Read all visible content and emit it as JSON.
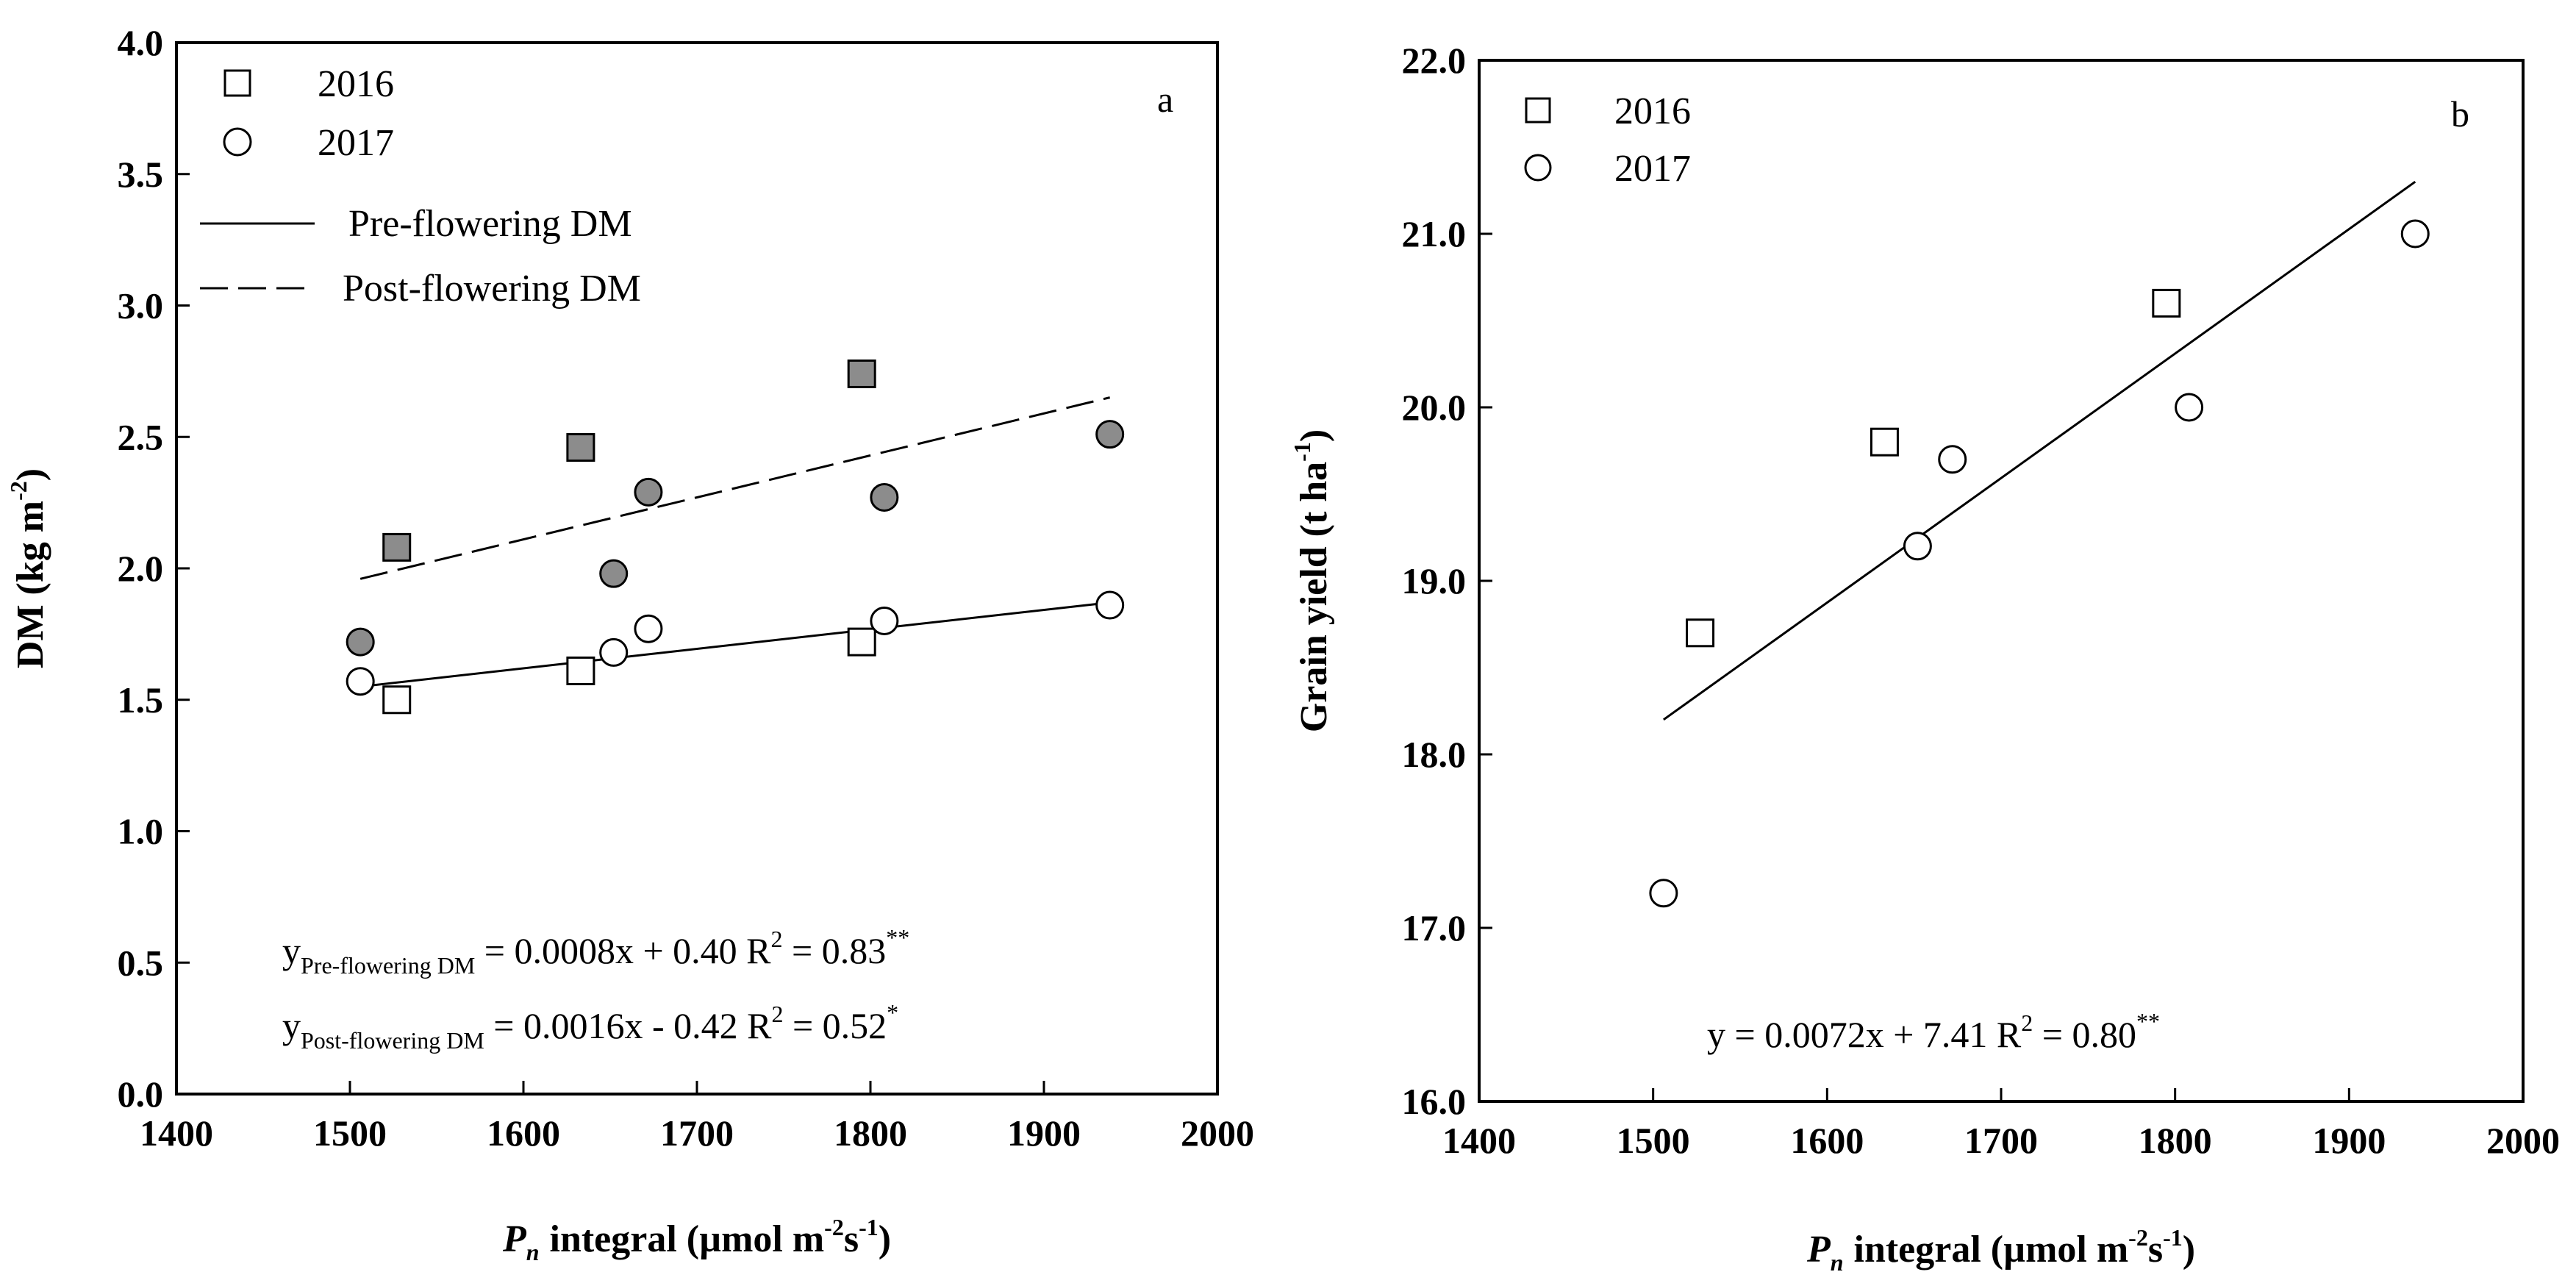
{
  "chart_data": [
    {
      "type": "scatter",
      "panel_letter": "a",
      "xlabel_main": "integral (µmol m",
      "xlabel_italic": "P",
      "xlabel_italic_sub": "n",
      "xlabel_sup1": "-2",
      "xlabel_mid": "s",
      "xlabel_sup2": "-1",
      "xlabel_end": ")",
      "ylabel_main": "DM (kg m",
      "ylabel_sup": "-2",
      "ylabel_end": ")",
      "xlim": [
        1400,
        2000
      ],
      "ylim": [
        0.0,
        4.0
      ],
      "xticks": [
        "1400",
        "1500",
        "1600",
        "1700",
        "1800",
        "1900",
        "2000"
      ],
      "yticks": [
        "0.0",
        "0.5",
        "1.0",
        "1.5",
        "2.0",
        "2.5",
        "3.0",
        "3.5",
        "4.0"
      ],
      "xtick_values": [
        1400,
        1500,
        1600,
        1700,
        1800,
        1900,
        2000
      ],
      "ytick_values": [
        0.0,
        0.5,
        1.0,
        1.5,
        2.0,
        2.5,
        3.0,
        3.5,
        4.0
      ],
      "legend": [
        {
          "label": "2016",
          "marker": "square"
        },
        {
          "label": "2017",
          "marker": "circle"
        },
        {
          "label": "Pre-flowering DM",
          "line": "solid"
        },
        {
          "label": "Post-flowering DM",
          "line": "dashed"
        }
      ],
      "series": [
        {
          "name": "2016 Pre-flowering DM",
          "marker": "square",
          "fill": "#ffffff",
          "points": [
            [
              1527,
              1.5
            ],
            [
              1633,
              1.61
            ],
            [
              1795,
              1.72
            ]
          ]
        },
        {
          "name": "2017 Pre-flowering DM",
          "marker": "circle",
          "fill": "#ffffff",
          "points": [
            [
              1506,
              1.57
            ],
            [
              1652,
              1.68
            ],
            [
              1672,
              1.77
            ],
            [
              1808,
              1.8
            ],
            [
              1938,
              1.86
            ]
          ]
        },
        {
          "name": "2016 Post-flowering DM",
          "marker": "square",
          "fill": "#8c8c8c",
          "points": [
            [
              1527,
              2.08
            ],
            [
              1633,
              2.46
            ],
            [
              1795,
              2.74
            ]
          ]
        },
        {
          "name": "2017 Post-flowering DM",
          "marker": "circle",
          "fill": "#8c8c8c",
          "points": [
            [
              1506,
              1.72
            ],
            [
              1652,
              1.98
            ],
            [
              1672,
              2.29
            ],
            [
              1808,
              2.27
            ],
            [
              1938,
              2.51
            ]
          ]
        }
      ],
      "fits": [
        {
          "name": "Pre-flowering DM",
          "style": "solid",
          "x": [
            1506,
            1938
          ],
          "y": [
            1.55,
            1.87
          ]
        },
        {
          "name": "Post-flowering DM",
          "style": "dashed",
          "x": [
            1506,
            1938
          ],
          "y": [
            1.96,
            2.65
          ]
        }
      ],
      "equations": [
        {
          "y": "y",
          "sub": "Pre-flowering DM",
          "body": " = 0.0008x + 0.40  R",
          "r2sup": "2",
          "r2": " = 0.83",
          "sig": "**"
        },
        {
          "y": "y",
          "sub": "Post-flowering DM",
          "body": " = 0.0016x - 0.42  R",
          "r2sup": "2",
          "r2": " = 0.52",
          "sig": "*"
        }
      ]
    },
    {
      "type": "scatter",
      "panel_letter": "b",
      "xlabel_main": "integral (µmol m",
      "xlabel_italic": "P",
      "xlabel_italic_sub": "n",
      "xlabel_sup1": "-2",
      "xlabel_mid": "s",
      "xlabel_sup2": "-1",
      "xlabel_end": ")",
      "ylabel_main": "Grain yield (t ha",
      "ylabel_sup": "-1",
      "ylabel_end": ")",
      "xlim": [
        1400,
        2000
      ],
      "ylim": [
        16.0,
        22.0
      ],
      "xticks": [
        "1400",
        "1500",
        "1600",
        "1700",
        "1800",
        "1900",
        "2000"
      ],
      "yticks": [
        "16.0",
        "17.0",
        "18.0",
        "19.0",
        "20.0",
        "21.0",
        "22.0"
      ],
      "xtick_values": [
        1400,
        1500,
        1600,
        1700,
        1800,
        1900,
        2000
      ],
      "ytick_values": [
        16.0,
        17.0,
        18.0,
        19.0,
        20.0,
        21.0,
        22.0
      ],
      "legend": [
        {
          "label": "2016",
          "marker": "square"
        },
        {
          "label": "2017",
          "marker": "circle"
        }
      ],
      "series": [
        {
          "name": "2016",
          "marker": "square",
          "fill": "#ffffff",
          "points": [
            [
              1527,
              18.7
            ],
            [
              1633,
              19.8
            ],
            [
              1795,
              20.6
            ]
          ]
        },
        {
          "name": "2017",
          "marker": "circle",
          "fill": "#ffffff",
          "points": [
            [
              1506,
              17.2
            ],
            [
              1652,
              19.2
            ],
            [
              1672,
              19.7
            ],
            [
              1808,
              20.0
            ],
            [
              1938,
              21.0
            ]
          ]
        }
      ],
      "fits": [
        {
          "name": "Grain yield fit",
          "style": "solid",
          "x": [
            1506,
            1938
          ],
          "y": [
            18.2,
            21.3
          ]
        }
      ],
      "equations": [
        {
          "y": "y",
          "sub": "",
          "body": " = 0.0072x + 7.41  R",
          "r2sup": "2",
          "r2": " = 0.80",
          "sig": "**"
        }
      ]
    }
  ]
}
